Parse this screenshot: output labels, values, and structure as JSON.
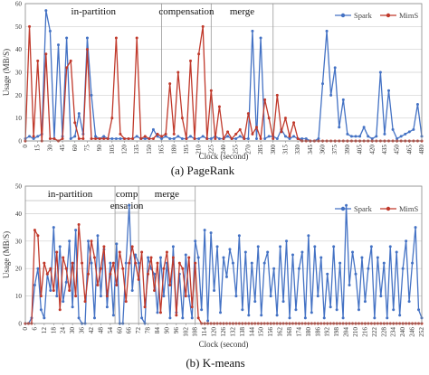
{
  "colors": {
    "spark": "#4472c4",
    "mims": "#c0392b",
    "grid": "#cfcfcf",
    "frame": "#888888",
    "divider": "#999999"
  },
  "chart_data": [
    {
      "type": "line",
      "caption": "(a) PageRank",
      "xlabel": "Clock (second)",
      "ylabel": "Usage (MB/S)",
      "ylim": [
        0,
        60
      ],
      "yticks": [
        0,
        10,
        20,
        30,
        40,
        50,
        60
      ],
      "xlim": [
        0,
        480
      ],
      "xtick_labels": [
        "0",
        "15",
        "30",
        "45",
        "60",
        "75",
        "90",
        "105",
        "120",
        "135",
        "150",
        "165",
        "180",
        "195",
        "210",
        "225",
        "240",
        "255",
        "270",
        "285",
        "300",
        "315",
        "330",
        "345",
        "360",
        "375",
        "390",
        "405",
        "420",
        "435",
        "450",
        "465",
        "480"
      ],
      "grid": true,
      "legend": "top-right",
      "phases": [
        {
          "label": "in-partition",
          "start": 0,
          "end": 165
        },
        {
          "label": "compensation",
          "start": 165,
          "end": 225
        },
        {
          "label": "merge",
          "start": 225,
          "end": 300
        }
      ],
      "series": [
        {
          "name": "Spark",
          "color": "#4472c4",
          "x": [
            0,
            5,
            10,
            15,
            20,
            25,
            30,
            35,
            40,
            45,
            50,
            55,
            60,
            65,
            70,
            75,
            80,
            85,
            90,
            95,
            100,
            105,
            110,
            115,
            120,
            125,
            130,
            135,
            140,
            145,
            150,
            155,
            160,
            165,
            170,
            175,
            180,
            185,
            190,
            195,
            200,
            205,
            210,
            215,
            220,
            225,
            230,
            235,
            240,
            245,
            250,
            255,
            260,
            265,
            270,
            275,
            280,
            285,
            290,
            295,
            300,
            305,
            310,
            315,
            320,
            325,
            330,
            335,
            340,
            345,
            350,
            355,
            360,
            365,
            370,
            375,
            380,
            385,
            390,
            395,
            400,
            405,
            410,
            415,
            420,
            425,
            430,
            435,
            440,
            445,
            450,
            455,
            460,
            465,
            470,
            475,
            480
          ],
          "y": [
            1,
            2,
            1,
            2,
            3,
            57,
            48,
            1,
            42,
            2,
            45,
            1,
            2,
            12,
            3,
            45,
            20,
            2,
            1,
            2,
            1,
            1,
            1,
            1,
            1,
            1,
            1,
            2,
            1,
            1,
            1,
            5,
            2,
            1,
            2,
            1,
            1,
            2,
            1,
            1,
            2,
            1,
            1,
            2,
            1,
            1,
            2,
            1,
            1,
            2,
            1,
            1,
            2,
            1,
            1,
            48,
            1,
            45,
            1,
            2,
            2,
            1,
            5,
            2,
            1,
            2,
            1,
            1,
            1,
            0,
            0,
            1,
            25,
            48,
            20,
            32,
            6,
            18,
            3,
            2,
            2,
            2,
            6,
            2,
            1,
            2,
            30,
            3,
            22,
            5,
            1,
            2,
            3,
            4,
            5,
            16,
            2
          ]
        },
        {
          "name": "MimS",
          "color": "#c0392b",
          "x": [
            0,
            5,
            10,
            15,
            20,
            25,
            30,
            35,
            40,
            45,
            50,
            55,
            60,
            65,
            70,
            75,
            80,
            85,
            90,
            95,
            100,
            105,
            110,
            115,
            120,
            125,
            130,
            135,
            140,
            145,
            150,
            155,
            160,
            165,
            170,
            175,
            180,
            185,
            190,
            195,
            200,
            205,
            210,
            215,
            220,
            225,
            230,
            235,
            240,
            245,
            250,
            255,
            260,
            265,
            270,
            275,
            280,
            285,
            290,
            295,
            300,
            305,
            310,
            315,
            320,
            325,
            330,
            335,
            340,
            345,
            350,
            355,
            360,
            365,
            370,
            375,
            380,
            385,
            390,
            395,
            400,
            405,
            410,
            415,
            420,
            425,
            430,
            435,
            440,
            445,
            450,
            455,
            460,
            465,
            470,
            475,
            480
          ],
          "y": [
            0,
            50,
            2,
            35,
            0,
            38,
            1,
            1,
            0,
            1,
            32,
            35,
            8,
            1,
            1,
            40,
            1,
            1,
            1,
            1,
            1,
            10,
            45,
            3,
            1,
            1,
            1,
            45,
            1,
            2,
            1,
            1,
            3,
            2,
            3,
            25,
            3,
            30,
            10,
            1,
            35,
            1,
            38,
            50,
            1,
            22,
            1,
            15,
            1,
            4,
            1,
            3,
            5,
            1,
            12,
            3,
            6,
            1,
            18,
            10,
            1,
            20,
            4,
            10,
            2,
            8,
            1,
            0,
            0,
            0,
            0,
            0,
            0,
            0,
            0,
            0,
            0,
            0,
            0,
            0,
            0,
            0,
            0,
            0,
            0,
            0,
            0,
            0,
            0,
            0,
            0,
            0,
            0,
            0,
            0,
            0,
            0
          ]
        }
      ]
    },
    {
      "type": "line",
      "caption": "(b) K-means",
      "xlabel": "Clock (second)",
      "ylabel": "Usage (MB/S)",
      "ylim": [
        0,
        50
      ],
      "yticks": [
        0,
        10,
        20,
        30,
        40,
        50
      ],
      "xlim": [
        0,
        252
      ],
      "xtick_labels": [
        "0",
        "6",
        "12",
        "18",
        "24",
        "30",
        "36",
        "42",
        "48",
        "54",
        "60",
        "66",
        "72",
        "78",
        "84",
        "90",
        "96",
        "102",
        "108",
        "114",
        "120",
        "126",
        "132",
        "138",
        "144",
        "150",
        "156",
        "162",
        "168",
        "174",
        "180",
        "186",
        "192",
        "198",
        "204",
        "210",
        "216",
        "222",
        "228",
        "234",
        "240",
        "246",
        "252"
      ],
      "grid": true,
      "legend": "top-right",
      "phases": [
        {
          "label": "in-partition",
          "start": 0,
          "end": 57
        },
        {
          "label": "comp\nensation",
          "start": 57,
          "end": 72
        },
        {
          "label": "merge",
          "start": 72,
          "end": 108
        }
      ],
      "series": [
        {
          "name": "Spark",
          "color": "#4472c4",
          "x": [
            0,
            2,
            4,
            6,
            8,
            10,
            12,
            14,
            16,
            18,
            20,
            22,
            24,
            26,
            28,
            30,
            32,
            34,
            36,
            38,
            40,
            42,
            44,
            46,
            48,
            50,
            52,
            54,
            56,
            58,
            60,
            62,
            64,
            66,
            68,
            70,
            72,
            74,
            76,
            78,
            80,
            82,
            84,
            86,
            88,
            90,
            92,
            94,
            96,
            98,
            100,
            102,
            104,
            106,
            108,
            110,
            112,
            114,
            116,
            118,
            120,
            122,
            124,
            126,
            128,
            130,
            132,
            134,
            136,
            138,
            140,
            142,
            144,
            146,
            148,
            150,
            152,
            154,
            156,
            158,
            160,
            162,
            164,
            166,
            168,
            170,
            172,
            174,
            176,
            178,
            180,
            182,
            184,
            186,
            188,
            190,
            192,
            194,
            196,
            198,
            200,
            202,
            204,
            206,
            208,
            210,
            212,
            214,
            216,
            218,
            220,
            222,
            224,
            226,
            228,
            230,
            232,
            234,
            236,
            238,
            240,
            242,
            244,
            246,
            248,
            250,
            252
          ],
          "y": [
            0,
            0,
            2,
            14,
            20,
            5,
            2,
            18,
            12,
            35,
            10,
            28,
            8,
            15,
            30,
            6,
            34,
            2,
            0,
            0,
            30,
            22,
            2,
            32,
            10,
            27,
            6,
            22,
            3,
            29,
            0,
            0,
            22,
            43,
            12,
            25,
            22,
            2,
            0,
            24,
            20,
            18,
            4,
            24,
            10,
            22,
            2,
            28,
            4,
            18,
            2,
            25,
            10,
            2,
            30,
            24,
            5,
            34,
            1,
            33,
            12,
            28,
            4,
            24,
            17,
            27,
            22,
            10,
            32,
            5,
            26,
            3,
            22,
            8,
            28,
            3,
            22,
            26,
            10,
            20,
            3,
            28,
            8,
            30,
            2,
            25,
            5,
            20,
            26,
            2,
            32,
            4,
            28,
            10,
            24,
            2,
            18,
            6,
            28,
            5,
            22,
            2,
            43,
            14,
            26,
            18,
            5,
            24,
            8,
            20,
            28,
            2,
            24,
            10,
            22,
            2,
            28,
            5,
            26,
            3,
            20,
            30,
            8,
            22,
            35,
            5,
            2
          ]
        },
        {
          "name": "MimS",
          "color": "#c0392b",
          "x": [
            0,
            2,
            4,
            6,
            8,
            10,
            12,
            14,
            16,
            18,
            20,
            22,
            24,
            26,
            28,
            30,
            32,
            34,
            36,
            38,
            40,
            42,
            44,
            46,
            48,
            50,
            52,
            54,
            56,
            58,
            60,
            62,
            64,
            66,
            68,
            70,
            72,
            74,
            76,
            78,
            80,
            82,
            84,
            86,
            88,
            90,
            92,
            94,
            96,
            98,
            100,
            102,
            104,
            106,
            108,
            110,
            112,
            114,
            116,
            118,
            120,
            122,
            124,
            126,
            128,
            130,
            132,
            134,
            136,
            138,
            140,
            142,
            144,
            146,
            148,
            150,
            152,
            154,
            156,
            158,
            160,
            162,
            164,
            166,
            168,
            170,
            172,
            174,
            176,
            178,
            180,
            182,
            184,
            186,
            188,
            190,
            192,
            194,
            196,
            198,
            200,
            202,
            204,
            206,
            208,
            210,
            212,
            214,
            216,
            218,
            220,
            222,
            224,
            226,
            228,
            230,
            232,
            234,
            236,
            238,
            240,
            242,
            244,
            246,
            248,
            250,
            252
          ],
          "y": [
            0,
            0,
            0,
            34,
            32,
            10,
            22,
            18,
            20,
            12,
            26,
            5,
            24,
            20,
            12,
            22,
            10,
            36,
            22,
            8,
            18,
            30,
            24,
            14,
            20,
            28,
            10,
            18,
            22,
            14,
            26,
            20,
            8,
            22,
            28,
            22,
            16,
            26,
            6,
            18,
            24,
            12,
            22,
            4,
            20,
            26,
            14,
            24,
            3,
            22,
            20,
            10,
            24,
            6,
            22,
            2,
            0,
            0,
            0,
            0,
            0,
            0,
            0,
            0,
            0,
            0,
            0,
            0,
            0,
            0,
            0,
            0,
            0,
            0,
            0,
            0,
            0,
            0,
            0,
            0,
            0,
            0,
            0,
            0,
            0,
            0,
            0,
            0,
            0,
            0,
            0,
            0,
            0,
            0,
            0,
            0,
            0,
            0,
            0,
            0,
            0,
            0,
            0,
            0,
            0,
            0,
            0,
            0,
            0,
            0,
            0,
            0,
            0,
            0,
            0,
            0,
            0,
            0,
            0,
            0,
            0,
            0,
            0,
            0,
            0,
            0,
            0
          ]
        }
      ]
    }
  ]
}
